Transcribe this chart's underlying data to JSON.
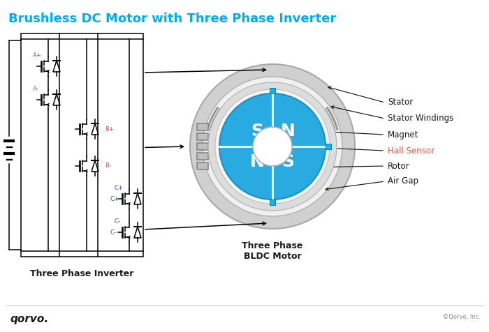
{
  "title": "Brushless DC Motor with Three Phase Inverter",
  "title_color": "#00AEEF",
  "title_fontsize": 13,
  "bg_color": "#FFFFFF",
  "motor_label": "Three Phase\nBLDC Motor",
  "inverter_label": "Three Phase Inverter",
  "hall_sensor_color": "#E8523A",
  "motor_blue": "#29ABE2",
  "stator_gray": "#C8C8C8",
  "line_color": "#000000",
  "hall_blue": "#29ABE2",
  "qorvo_color": "#1A1A1A",
  "copyright_color": "#888888",
  "label_fontsize": 8.5,
  "phase_label_color_ab": "#E8523A",
  "phase_label_color_c": "#1E5FA8"
}
